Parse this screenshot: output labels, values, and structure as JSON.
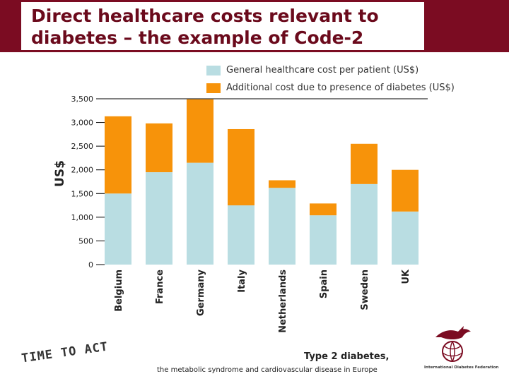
{
  "slide": {
    "title": "Direct healthcare costs relevant to\ndiabetes – the example of Code-2",
    "tagline": "TIME TO ACT",
    "footer_title": "Type 2 diabetes,",
    "footer_subtitle": "the metabolic syndrome and cardiovascular disease in Europe",
    "logo_text": "International Diabetes Federation"
  },
  "colors": {
    "brand": "#7b0c22",
    "general": "#b9dde2",
    "additional": "#f7930a"
  },
  "chart_data": {
    "type": "bar",
    "stacked": true,
    "categories": [
      "Belgium",
      "France",
      "Germany",
      "Italy",
      "Netherlands",
      "Spain",
      "Sweden",
      "UK"
    ],
    "series": [
      {
        "name": "General healthcare cost per patient (US$)",
        "values": [
          1500,
          1950,
          2150,
          1250,
          1620,
          1040,
          1700,
          1120
        ]
      },
      {
        "name": "Additional cost due to presence of diabetes (US$)",
        "values": [
          1630,
          1030,
          1340,
          1610,
          160,
          250,
          850,
          880
        ]
      }
    ],
    "ylabel": "US$",
    "yticks": [
      0,
      500,
      1000,
      1500,
      2000,
      2500,
      3000,
      3500
    ],
    "ytick_labels": [
      "0",
      "500",
      "1,000",
      "1,500",
      "2,000",
      "2,500",
      "3,000",
      "3,500"
    ],
    "ylim": [
      0,
      3500
    ],
    "grid": false,
    "legend": "top"
  }
}
